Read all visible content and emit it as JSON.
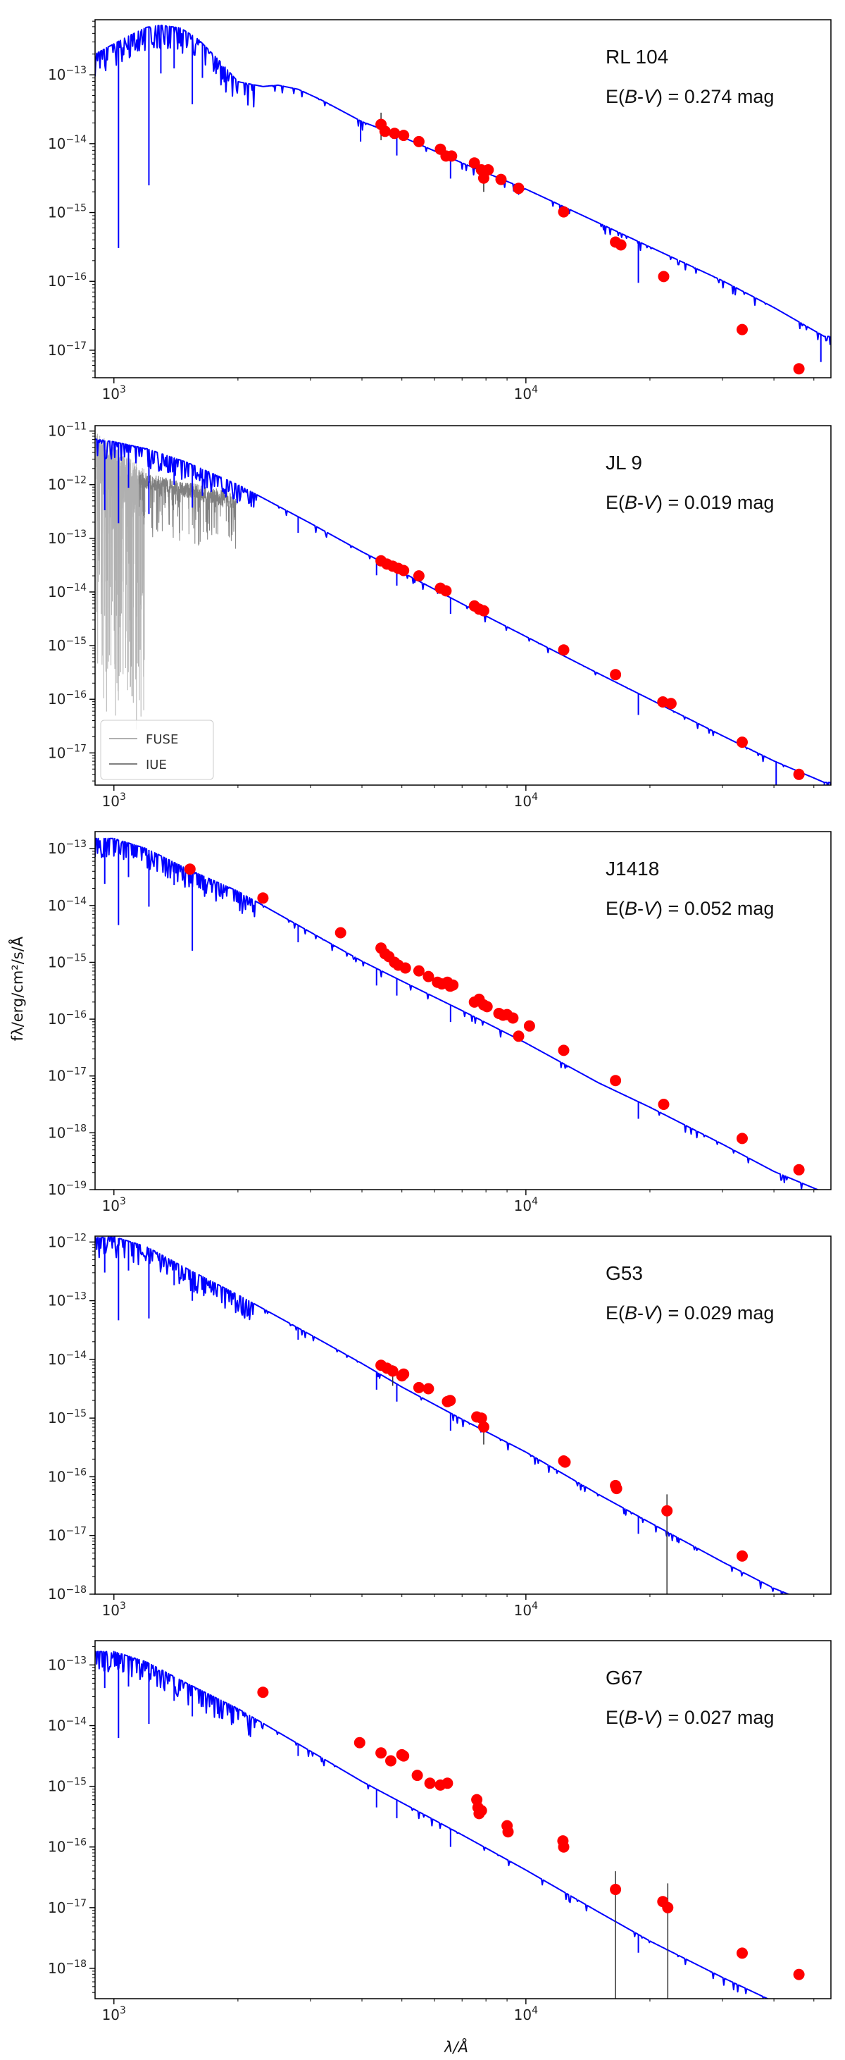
{
  "figure": {
    "x_axis_label": "λ/Å",
    "y_axis_label": "fλ/erg/cm²/s/Å",
    "x_ticks": [
      {
        "value": 1000,
        "base": "10",
        "exp": "3"
      },
      {
        "value": 10000,
        "base": "10",
        "exp": "4"
      }
    ],
    "colors": {
      "model": "#0000ff",
      "photometry": "#ff0000",
      "error_bar": "#333333",
      "fuse": "#b0b0b0",
      "iue": "#808080"
    }
  },
  "chart_data": [
    {
      "type": "line",
      "star": "RL 104",
      "ebv_label": "E(B-V) = 0.274 mag",
      "ebv_prefix": "E(",
      "ebv_b": "B",
      "ebv_dash": "-",
      "ebv_v": "V",
      "ebv_suffix": ") = 0.274 mag",
      "xlim": [
        900,
        55000
      ],
      "ylim_exp": [
        -17.4,
        -12.2
      ],
      "y_ticks": [
        -13,
        -14,
        -15,
        -16,
        -17
      ],
      "model": {
        "x": [
          900,
          1000,
          1100,
          1200,
          1300,
          1450,
          1600,
          1800,
          2000,
          2300,
          2500,
          2800,
          3200,
          4000,
          5000,
          7000,
          10000,
          15000,
          20000,
          30000,
          40000,
          53000
        ],
        "logy": [
          -12.7,
          -12.55,
          -12.42,
          -12.31,
          -12.28,
          -12.32,
          -12.48,
          -12.79,
          -13.1,
          -13.17,
          -13.15,
          -13.21,
          -13.37,
          -13.68,
          -13.9,
          -14.28,
          -14.66,
          -15.15,
          -15.5,
          -15.99,
          -16.38,
          -16.8
        ]
      },
      "absorption_lines": [
        {
          "x": 1026,
          "depth": 3.0
        },
        {
          "x": 1216,
          "depth": 2.3
        },
        {
          "x": 1300,
          "depth": 0.7
        },
        {
          "x": 1400,
          "depth": 0.6
        },
        {
          "x": 1550,
          "depth": 1.0
        },
        {
          "x": 1640,
          "depth": 0.5
        },
        {
          "x": 3970,
          "depth": 0.3
        },
        {
          "x": 4860,
          "depth": 0.3
        },
        {
          "x": 6563,
          "depth": 0.3
        },
        {
          "x": 18750,
          "depth": 0.6
        },
        {
          "x": 52000,
          "depth": 0.4
        }
      ],
      "extra_spectra": [],
      "legend": [],
      "photometry": {
        "x": [
          4450,
          4550,
          4800,
          5050,
          5500,
          6200,
          6400,
          6600,
          7500,
          7800,
          7900,
          8100,
          8700,
          9600,
          12350,
          16500,
          17000,
          21600,
          33500,
          46000
        ],
        "logy": [
          -13.72,
          -13.82,
          -13.85,
          -13.88,
          -13.97,
          -14.08,
          -14.18,
          -14.18,
          -14.28,
          -14.38,
          -14.5,
          -14.38,
          -14.52,
          -14.65,
          -14.99,
          -15.43,
          -15.47,
          -15.93,
          -16.7,
          -17.27
        ],
        "errorbars": [
          {
            "x": 4450,
            "lo": -13.95,
            "hi": -13.55
          },
          {
            "x": 7900,
            "lo": -14.7,
            "hi": -14.35
          }
        ]
      }
    },
    {
      "type": "line",
      "star": "JL 9",
      "ebv_label": "E(B-V) = 0.019 mag",
      "ebv_prefix": "E(",
      "ebv_b": "B",
      "ebv_dash": "-",
      "ebv_v": "V",
      "ebv_suffix": ") = 0.019 mag",
      "xlim": [
        900,
        55000
      ],
      "ylim_exp": [
        -17.6,
        -10.9
      ],
      "y_ticks": [
        -11,
        -12,
        -13,
        -14,
        -15,
        -16,
        -17
      ],
      "model": {
        "x": [
          900,
          1000,
          1200,
          1500,
          2000,
          3000,
          4000,
          5000,
          7000,
          10000,
          15000,
          20000,
          30000,
          40000,
          53000
        ],
        "logy": [
          -11.15,
          -11.2,
          -11.33,
          -11.58,
          -12.0,
          -12.72,
          -13.25,
          -13.63,
          -14.22,
          -14.83,
          -15.52,
          -16.0,
          -16.68,
          -17.15,
          -17.55
        ]
      },
      "absorption_lines": [
        {
          "x": 950,
          "depth": 1.3
        },
        {
          "x": 1026,
          "depth": 1.5
        },
        {
          "x": 1085,
          "depth": 0.8
        },
        {
          "x": 1216,
          "depth": 1.2
        },
        {
          "x": 1400,
          "depth": 0.5
        },
        {
          "x": 1550,
          "depth": 0.8
        },
        {
          "x": 1640,
          "depth": 0.5
        },
        {
          "x": 2800,
          "depth": 0.3
        },
        {
          "x": 4340,
          "depth": 0.3
        },
        {
          "x": 4860,
          "depth": 0.3
        },
        {
          "x": 6563,
          "depth": 0.3
        },
        {
          "x": 18750,
          "depth": 0.4
        },
        {
          "x": 40500,
          "depth": 0.5
        },
        {
          "x": 53000,
          "depth": 0.6
        }
      ],
      "extra_spectra": [
        {
          "name": "FUSE",
          "x_range": [
            905,
            1190
          ],
          "base_at": [
            905,
            1190
          ],
          "base_logy": [
            -11.5,
            -12.2
          ],
          "scatter": 1.6,
          "down_bias": 0.9
        },
        {
          "name": "IUE",
          "x_range": [
            1150,
            1980
          ],
          "base_at": [
            1150,
            1980
          ],
          "base_logy": [
            -11.9,
            -12.3
          ],
          "scatter": 0.5,
          "down_bias": 0.3
        }
      ],
      "legend": [
        {
          "label": "FUSE",
          "color": "#b0b0b0"
        },
        {
          "label": "IUE",
          "color": "#808080"
        }
      ],
      "photometry": {
        "x": [
          4450,
          4600,
          4750,
          4900,
          5050,
          5500,
          6200,
          6400,
          7500,
          7700,
          7900,
          12350,
          16500,
          21500,
          22500,
          33500,
          46000
        ],
        "logy": [
          -13.42,
          -13.48,
          -13.52,
          -13.56,
          -13.6,
          -13.7,
          -13.93,
          -13.98,
          -14.26,
          -14.32,
          -14.35,
          -15.08,
          -15.54,
          -16.05,
          -16.08,
          -16.8,
          -17.4
        ],
        "errorbars": []
      }
    },
    {
      "type": "line",
      "star": "J1418",
      "ebv_label": "E(B-V) = 0.052 mag",
      "ebv_prefix": "E(",
      "ebv_b": "B",
      "ebv_dash": "-",
      "ebv_v": "V",
      "ebv_suffix": ") = 0.052 mag",
      "xlim": [
        900,
        55000
      ],
      "ylim_exp": [
        -19.0,
        -12.7
      ],
      "y_ticks": [
        -13,
        -14,
        -15,
        -16,
        -17,
        -18,
        -19
      ],
      "model": {
        "x": [
          900,
          1000,
          1200,
          1500,
          2000,
          3000,
          4000,
          5000,
          7000,
          10000,
          15000,
          20000,
          30000,
          40000,
          53000
        ],
        "logy": [
          -12.82,
          -12.82,
          -13.0,
          -13.35,
          -13.75,
          -14.47,
          -14.98,
          -15.33,
          -15.85,
          -16.42,
          -17.12,
          -17.55,
          -18.2,
          -18.68,
          -19.05
        ]
      },
      "absorption_lines": [
        {
          "x": 950,
          "depth": 0.8
        },
        {
          "x": 1026,
          "depth": 1.5
        },
        {
          "x": 1085,
          "depth": 0.6
        },
        {
          "x": 1216,
          "depth": 1.0
        },
        {
          "x": 1400,
          "depth": 0.4
        },
        {
          "x": 1550,
          "depth": 1.4
        },
        {
          "x": 2800,
          "depth": 0.3
        },
        {
          "x": 4340,
          "depth": 0.3
        },
        {
          "x": 4860,
          "depth": 0.3
        },
        {
          "x": 6563,
          "depth": 0.3
        },
        {
          "x": 18750,
          "depth": 0.3
        },
        {
          "x": 53000,
          "depth": 0.5
        }
      ],
      "extra_spectra": [],
      "legend": [],
      "photometry": {
        "x": [
          1530,
          2300,
          3550,
          4450,
          4550,
          4650,
          4800,
          4900,
          5100,
          5500,
          5800,
          6100,
          6250,
          6450,
          6550,
          6650,
          7500,
          7700,
          7900,
          8050,
          8600,
          8800,
          9000,
          9300,
          9600,
          10200,
          12350,
          16500,
          21600,
          33500,
          46000
        ],
        "logy": [
          -13.36,
          -13.87,
          -14.48,
          -14.75,
          -14.85,
          -14.9,
          -15.0,
          -15.05,
          -15.1,
          -15.15,
          -15.25,
          -15.35,
          -15.38,
          -15.35,
          -15.42,
          -15.4,
          -15.7,
          -15.65,
          -15.75,
          -15.78,
          -15.9,
          -15.93,
          -15.92,
          -15.98,
          -16.3,
          -16.12,
          -16.55,
          -17.08,
          -17.5,
          -18.1,
          -18.65
        ],
        "errorbars": []
      }
    },
    {
      "type": "line",
      "star": "G53",
      "ebv_label": "E(B-V) = 0.029 mag",
      "ebv_prefix": "E(",
      "ebv_b": "B",
      "ebv_dash": "-",
      "ebv_v": "V",
      "ebv_suffix": ") = 0.029 mag",
      "xlim": [
        900,
        55000
      ],
      "ylim_exp": [
        -18.0,
        -11.9
      ],
      "y_ticks": [
        -12,
        -13,
        -14,
        -15,
        -16,
        -17,
        -18
      ],
      "model": {
        "x": [
          900,
          1000,
          1200,
          1500,
          2000,
          3000,
          4000,
          5000,
          7000,
          10000,
          15000,
          20000,
          30000,
          40000,
          53000
        ],
        "logy": [
          -11.93,
          -11.91,
          -12.08,
          -12.45,
          -12.9,
          -13.58,
          -14.07,
          -14.47,
          -15.02,
          -15.58,
          -16.3,
          -16.78,
          -17.45,
          -17.9,
          -18.25
        ]
      },
      "absorption_lines": [
        {
          "x": 950,
          "depth": 0.6
        },
        {
          "x": 1026,
          "depth": 1.4
        },
        {
          "x": 1085,
          "depth": 0.5
        },
        {
          "x": 1216,
          "depth": 1.2
        },
        {
          "x": 1400,
          "depth": 0.4
        },
        {
          "x": 1550,
          "depth": 0.5
        },
        {
          "x": 2800,
          "depth": 0.2
        },
        {
          "x": 4340,
          "depth": 0.3
        },
        {
          "x": 4860,
          "depth": 0.3
        },
        {
          "x": 6563,
          "depth": 0.3
        },
        {
          "x": 18750,
          "depth": 0.3
        },
        {
          "x": 53000,
          "depth": 0.4
        }
      ],
      "extra_spectra": [],
      "legend": [],
      "photometry": {
        "x": [
          4450,
          4600,
          4750,
          5000,
          5050,
          5500,
          5800,
          6450,
          6550,
          7600,
          7800,
          7900,
          12350,
          12450,
          16500,
          16600,
          22000,
          33500
        ],
        "logy": [
          -14.1,
          -14.15,
          -14.2,
          -14.28,
          -14.25,
          -14.48,
          -14.5,
          -14.72,
          -14.7,
          -14.98,
          -15.0,
          -15.15,
          -15.73,
          -15.75,
          -16.15,
          -16.2,
          -16.58,
          -17.35
        ],
        "errorbars": [
          {
            "x": 22000,
            "lo": -18.0,
            "hi": -16.3
          },
          {
            "x": 7900,
            "lo": -15.45,
            "hi": -15.05
          },
          {
            "x": 4750,
            "lo": -14.45,
            "hi": -14.1
          }
        ]
      }
    },
    {
      "type": "line",
      "star": "G67",
      "ebv_label": "E(B-V) = 0.027 mag",
      "ebv_prefix": "E(",
      "ebv_b": "B",
      "ebv_dash": "-",
      "ebv_v": "V",
      "ebv_suffix": ") = 0.027 mag",
      "xlim": [
        900,
        55000
      ],
      "ylim_exp": [
        -18.5,
        -12.6
      ],
      "y_ticks": [
        -13,
        -14,
        -15,
        -16,
        -17,
        -18
      ],
      "model": {
        "x": [
          900,
          1000,
          1200,
          1500,
          2000,
          3000,
          4000,
          5000,
          7000,
          10000,
          15000,
          20000,
          30000,
          40000,
          53000
        ],
        "logy": [
          -12.78,
          -12.78,
          -12.95,
          -13.3,
          -13.72,
          -14.42,
          -14.92,
          -15.27,
          -15.8,
          -16.38,
          -17.07,
          -17.55,
          -18.15,
          -18.55,
          -18.9
        ]
      },
      "absorption_lines": [
        {
          "x": 950,
          "depth": 0.6
        },
        {
          "x": 1026,
          "depth": 1.4
        },
        {
          "x": 1085,
          "depth": 0.5
        },
        {
          "x": 1216,
          "depth": 1.0
        },
        {
          "x": 1400,
          "depth": 0.4
        },
        {
          "x": 1550,
          "depth": 0.5
        },
        {
          "x": 2800,
          "depth": 0.2
        },
        {
          "x": 4340,
          "depth": 0.3
        },
        {
          "x": 4860,
          "depth": 0.3
        },
        {
          "x": 6563,
          "depth": 0.3
        },
        {
          "x": 18750,
          "depth": 0.3
        },
        {
          "x": 53000,
          "depth": 0.4
        }
      ],
      "extra_spectra": [],
      "legend": [],
      "photometry": {
        "x": [
          2300,
          3950,
          4450,
          4700,
          5000,
          5050,
          5450,
          5850,
          6200,
          6450,
          7600,
          7650,
          7700,
          7800,
          9000,
          9050,
          12300,
          12350,
          16500,
          21500,
          22100,
          33500,
          46000
        ],
        "logy": [
          -13.45,
          -14.28,
          -14.45,
          -14.58,
          -14.48,
          -14.5,
          -14.82,
          -14.95,
          -14.98,
          -14.95,
          -15.22,
          -15.35,
          -15.45,
          -15.4,
          -15.65,
          -15.75,
          -15.9,
          -16.0,
          -16.7,
          -16.9,
          -17.0,
          -17.75,
          -18.1
        ],
        "errorbars": [
          {
            "x": 16500,
            "lo": -18.5,
            "hi": -16.4
          },
          {
            "x": 22100,
            "lo": -18.5,
            "hi": -16.6
          }
        ]
      }
    }
  ]
}
